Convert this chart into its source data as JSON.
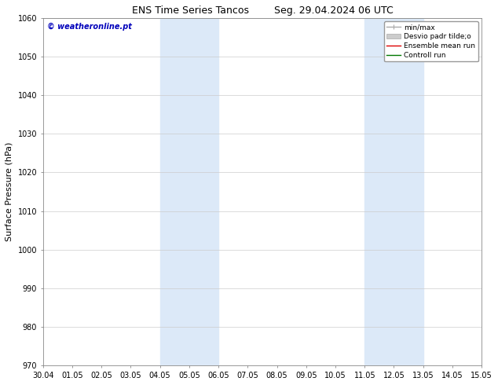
{
  "title_left": "ENS Time Series Tancos",
  "title_right": "Seg. 29.04.2024 06 UTC",
  "ylabel": "Surface Pressure (hPa)",
  "ylim": [
    970,
    1060
  ],
  "yticks": [
    970,
    980,
    990,
    1000,
    1010,
    1020,
    1030,
    1040,
    1050,
    1060
  ],
  "xtick_labels": [
    "30.04",
    "01.05",
    "02.05",
    "03.05",
    "04.05",
    "05.05",
    "06.05",
    "07.05",
    "08.05",
    "09.05",
    "10.05",
    "11.05",
    "12.05",
    "13.05",
    "14.05",
    "15.05"
  ],
  "shaded_regions": [
    {
      "xstart": 4,
      "xend": 6,
      "color": "#dce9f8"
    },
    {
      "xstart": 11,
      "xend": 13,
      "color": "#dce9f8"
    }
  ],
  "watermark_text": "© weatheronline.pt",
  "watermark_color": "#0000bb",
  "legend_items": [
    {
      "label": "min/max",
      "color": "#aaaaaa",
      "lw": 1.0
    },
    {
      "label": "Desvio padr tilde;o",
      "color": "#cccccc",
      "lw": 6
    },
    {
      "label": "Ensemble mean run",
      "color": "#dd0000",
      "lw": 1.0
    },
    {
      "label": "Controll run",
      "color": "#007700",
      "lw": 1.0
    }
  ],
  "bg_color": "#ffffff",
  "plot_bg_color": "#ffffff",
  "grid_color": "#cccccc",
  "title_fontsize": 9,
  "tick_fontsize": 7,
  "ylabel_fontsize": 8,
  "watermark_fontsize": 7,
  "legend_fontsize": 6.5
}
